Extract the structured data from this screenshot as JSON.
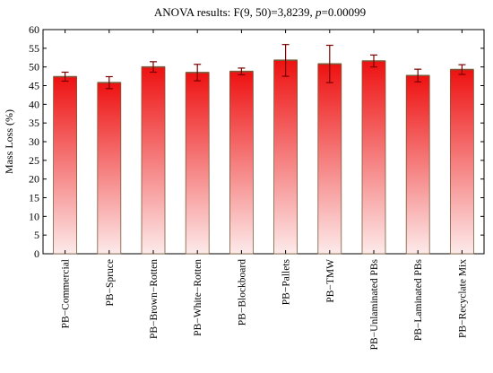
{
  "chart_data": {
    "type": "bar",
    "title_prefix": "ANOVA results: F(9, 50)=3,8239, ",
    "title_p_symbol": "p",
    "title_p_value": "=0.00099",
    "ylabel": "Mass Loss (%)",
    "xlabel": "",
    "ylim": [
      0,
      60
    ],
    "yticks": [
      "0",
      "5",
      "10",
      "15",
      "20",
      "25",
      "30",
      "35",
      "40",
      "45",
      "50",
      "55",
      "60"
    ],
    "grid": false,
    "categories": [
      "PB−Commercial",
      "PB−Spruce",
      "PB−Brown−Rotten",
      "PB−White−Rotten",
      "PB−Blockboard",
      "PB−Pallets",
      "PB−TMW",
      "PB−Unlaminated PBs",
      "PB−Laminated PBs",
      "PB−Recyclate Mix"
    ],
    "values": [
      47.4,
      45.8,
      50.0,
      48.5,
      48.8,
      51.8,
      50.8,
      51.6,
      47.7,
      49.3
    ],
    "error_low": [
      46.2,
      44.2,
      48.6,
      46.3,
      47.9,
      47.5,
      45.8,
      50.0,
      46.0,
      48.0
    ],
    "error_high": [
      48.6,
      47.4,
      51.4,
      50.7,
      49.7,
      56.0,
      55.8,
      53.2,
      49.4,
      50.6
    ],
    "colors": {
      "bar_top": "#ee1111",
      "bar_bottom": "#fdeaea",
      "bar_edge": "#7a5a3a",
      "error_bar": "#7a0000"
    }
  }
}
